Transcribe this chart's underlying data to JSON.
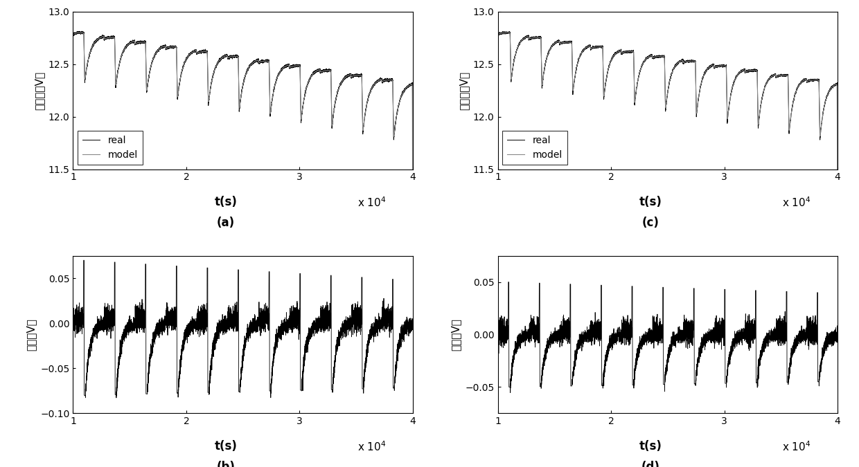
{
  "fig_width": 12.4,
  "fig_height": 6.75,
  "dpi": 100,
  "xlim": [
    1,
    4
  ],
  "xticks": [
    1,
    2,
    3,
    4
  ],
  "xlabel": "t(s)",
  "xscale_label": "x 10$^4$",
  "voltage_ylim": [
    11.5,
    13
  ],
  "voltage_yticks": [
    11.5,
    12,
    12.5,
    13
  ],
  "voltage_ylabel_cn": "端电压（V）",
  "error_ylim_b": [
    -0.1,
    0.075
  ],
  "error_yticks_b": [
    -0.1,
    -0.05,
    0,
    0.05
  ],
  "error_ylim_d": [
    -0.075,
    0.075
  ],
  "error_yticks_d": [
    -0.05,
    0,
    0.05
  ],
  "error_ylabel_cn": "误差（V）",
  "legend_real": "real",
  "legend_model": "model",
  "real_color": "#000000",
  "model_color": "#888888",
  "background_color": "#ffffff",
  "n_pulses_a": 11,
  "n_pulses_c": 11,
  "font_size": 11,
  "label_font_size": 12,
  "tick_font_size": 10
}
